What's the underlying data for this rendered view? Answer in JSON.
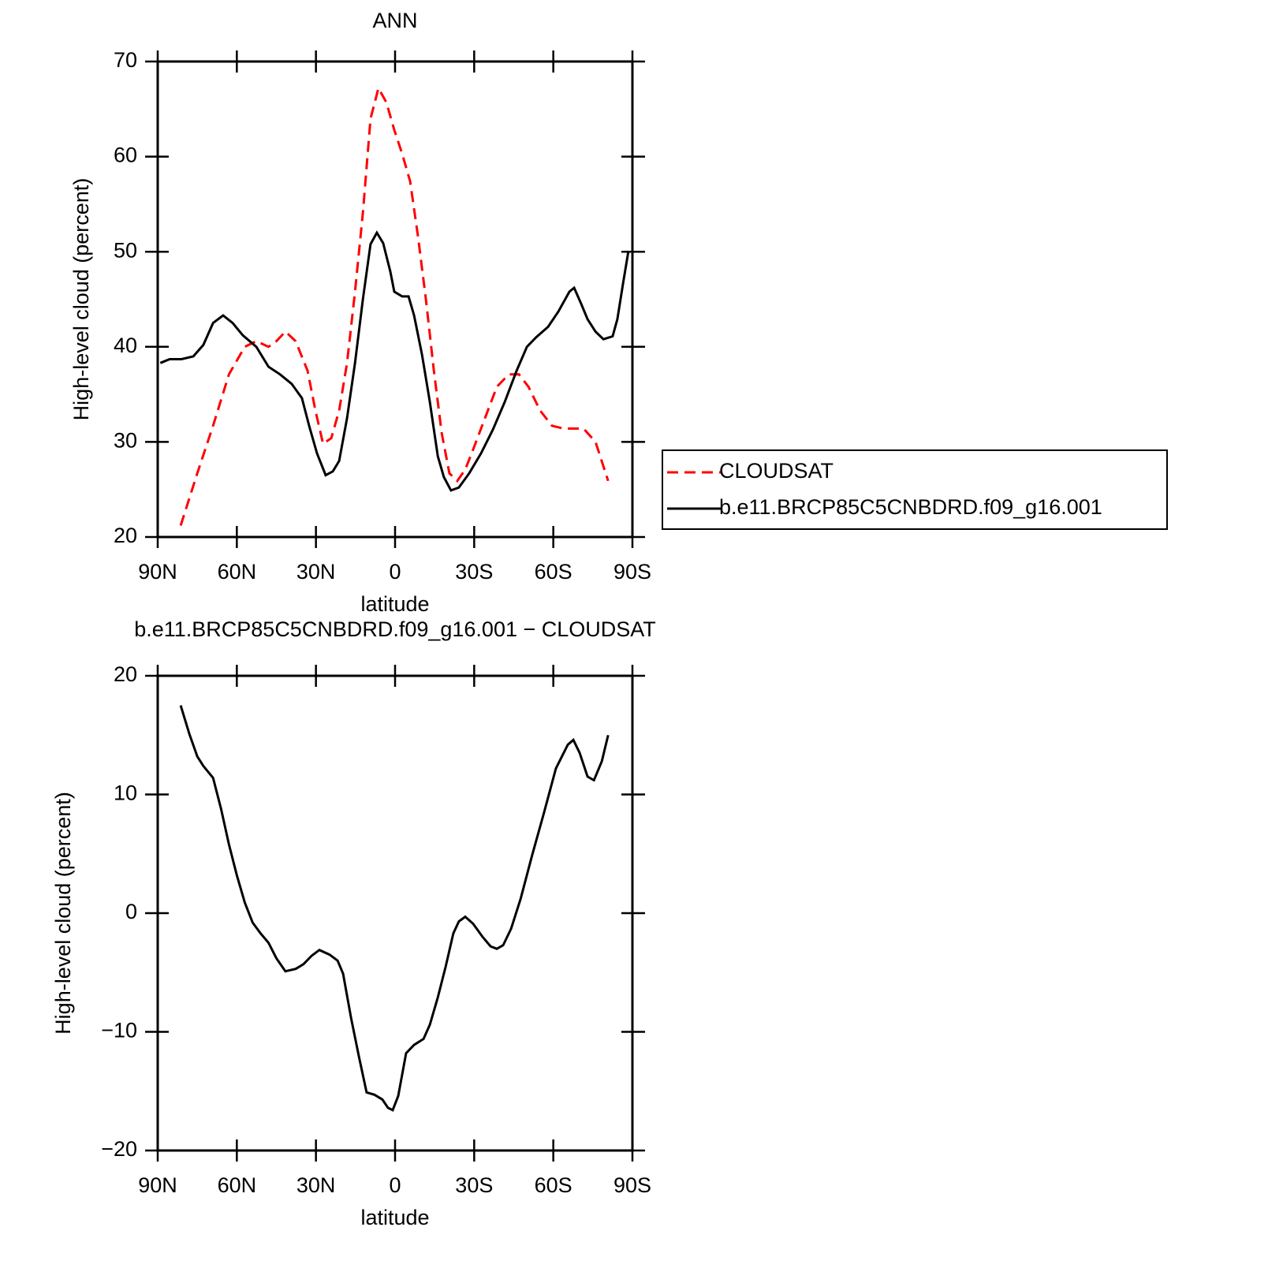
{
  "chart_data": [
    {
      "type": "line",
      "title": "ANN",
      "xlabel": "latitude",
      "ylabel": "High-level cloud (percent)",
      "xlim": [
        90,
        -90
      ],
      "ylim": [
        20,
        70
      ],
      "xticks": [
        {
          "value": 90,
          "label": "90N"
        },
        {
          "value": 60,
          "label": "60N"
        },
        {
          "value": 30,
          "label": "30N"
        },
        0,
        {
          "value": -30,
          "label": "30S"
        },
        {
          "value": -60,
          "label": "60S"
        },
        {
          "value": -90,
          "label": "90S"
        }
      ],
      "yticks": [
        20,
        30,
        40,
        50,
        60,
        70
      ],
      "legend": "right",
      "series": [
        {
          "name": "CLOUDSAT",
          "color": "#ff0000",
          "linestyle": "dashed",
          "x": [
            81.3,
            75,
            69,
            63,
            57,
            52.6,
            48,
            45,
            41.6,
            37.7,
            33.2,
            30.2,
            27.3,
            24.2,
            21.2,
            18.2,
            15.2,
            12.2,
            9.3,
            6.3,
            3.3,
            0.3,
            -2.7,
            -5.7,
            -8.7,
            -11.7,
            -14.7,
            -17.7,
            -20.6,
            -23.6,
            -26.6,
            -29.6,
            -34.1,
            -38.6,
            -43.1,
            -47,
            -50.6,
            -55,
            -59.5,
            -64,
            -71.5,
            -76,
            -80.8
          ],
          "values": [
            21.2,
            26.7,
            31.7,
            37.1,
            40.0,
            40.6,
            40.0,
            40.6,
            41.6,
            40.6,
            37.5,
            33.3,
            29.8,
            30.4,
            33.3,
            38.3,
            45.8,
            54.1,
            64.0,
            67.2,
            65.7,
            62.8,
            60.3,
            57.4,
            51.6,
            45.0,
            37.5,
            30.9,
            26.7,
            25.9,
            27.1,
            29.2,
            32.5,
            35.8,
            37.1,
            37.1,
            35.8,
            33.3,
            31.7,
            31.4,
            31.4,
            30.0,
            25.9
          ]
        },
        {
          "name": "b.e11.BRCP85C5CNBDRD.f09_g16.001",
          "color": "#000000",
          "linestyle": "solid",
          "x": [
            89,
            85.5,
            81,
            76.5,
            72.7,
            69,
            65.2,
            61.6,
            57.7,
            52.6,
            48,
            43.6,
            39.2,
            35.3,
            32.6,
            29.6,
            26.3,
            23.6,
            21.2,
            18.2,
            15.2,
            12.2,
            9.3,
            6.9,
            4.5,
            1.8,
            0.3,
            -2.7,
            -5.1,
            -7.2,
            -10.2,
            -13.2,
            -16.2,
            -18.5,
            -21.2,
            -24.2,
            -28.1,
            -32.6,
            -37.1,
            -41.6,
            -46.1,
            -50,
            -53.5,
            -58,
            -61.9,
            -66.1,
            -67.9,
            -70.6,
            -73,
            -76,
            -79,
            -82.5,
            -84.3,
            -86.4,
            -88.5
          ],
          "values": [
            38.3,
            38.7,
            38.7,
            39.0,
            40.2,
            42.5,
            43.3,
            42.5,
            41.2,
            40.0,
            37.9,
            37.1,
            36.1,
            34.6,
            31.7,
            28.8,
            26.5,
            26.9,
            28.0,
            32.5,
            38.3,
            45.0,
            50.8,
            52.0,
            50.9,
            47.9,
            45.8,
            45.3,
            45.3,
            43.3,
            39.2,
            34.2,
            28.5,
            26.3,
            24.9,
            25.2,
            26.7,
            28.8,
            31.3,
            34.2,
            37.5,
            40.0,
            41.0,
            42.1,
            43.7,
            45.8,
            46.2,
            44.5,
            42.9,
            41.6,
            40.8,
            41.1,
            42.9,
            46.6,
            50.1
          ]
        }
      ]
    },
    {
      "type": "line",
      "title": "b.e11.BRCP85C5CNBDRD.f09_g16.001 − CLOUDSAT",
      "xlabel": "latitude",
      "ylabel": "High-level cloud (percent)",
      "xlim": [
        90,
        -90
      ],
      "ylim": [
        -20,
        20
      ],
      "xticks": [
        {
          "value": 90,
          "label": "90N"
        },
        {
          "value": 60,
          "label": "60N"
        },
        {
          "value": 30,
          "label": "30N"
        },
        0,
        {
          "value": -30,
          "label": "30S"
        },
        {
          "value": -60,
          "label": "60S"
        },
        {
          "value": -90,
          "label": "90S"
        }
      ],
      "yticks": [
        {
          "value": -20,
          "label": "−20"
        },
        {
          "value": -10,
          "label": "−10"
        },
        0,
        10,
        20
      ],
      "series": [
        {
          "color": "#000000",
          "linestyle": "solid",
          "x": [
            81.3,
            78,
            75,
            72.7,
            69,
            66,
            63,
            60,
            57,
            54,
            51,
            48,
            45,
            41.6,
            37.7,
            34.7,
            31.7,
            28.7,
            24.8,
            21.8,
            19.7,
            16.7,
            13.7,
            10.8,
            7.8,
            4.8,
            2.7,
            0.9,
            -1.2,
            -4.2,
            -7.2,
            -10.8,
            -13.2,
            -16.2,
            -19.2,
            -22.1,
            -24.2,
            -26.6,
            -29.6,
            -33.2,
            -36.2,
            -38.6,
            -41,
            -44,
            -47.6,
            -52,
            -56.5,
            -61,
            -65.5,
            -67.6,
            -70,
            -73,
            -75.4,
            -78.4,
            -80.8
          ],
          "values": [
            17.5,
            15.1,
            13.2,
            12.4,
            11.4,
            8.8,
            5.8,
            3.2,
            0.9,
            -0.8,
            -1.7,
            -2.5,
            -3.8,
            -4.9,
            -4.7,
            -4.3,
            -3.6,
            -3.1,
            -3.5,
            -4.0,
            -5.1,
            -8.8,
            -12.1,
            -15.1,
            -15.3,
            -15.7,
            -16.4,
            -16.6,
            -15.4,
            -11.8,
            -11.1,
            -10.6,
            -9.4,
            -7.1,
            -4.5,
            -1.7,
            -0.7,
            -0.3,
            -0.9,
            -2.0,
            -2.8,
            -3.0,
            -2.7,
            -1.3,
            1.2,
            4.9,
            8.5,
            12.2,
            14.2,
            14.6,
            13.5,
            11.5,
            11.2,
            12.8,
            15.0
          ]
        }
      ]
    }
  ]
}
